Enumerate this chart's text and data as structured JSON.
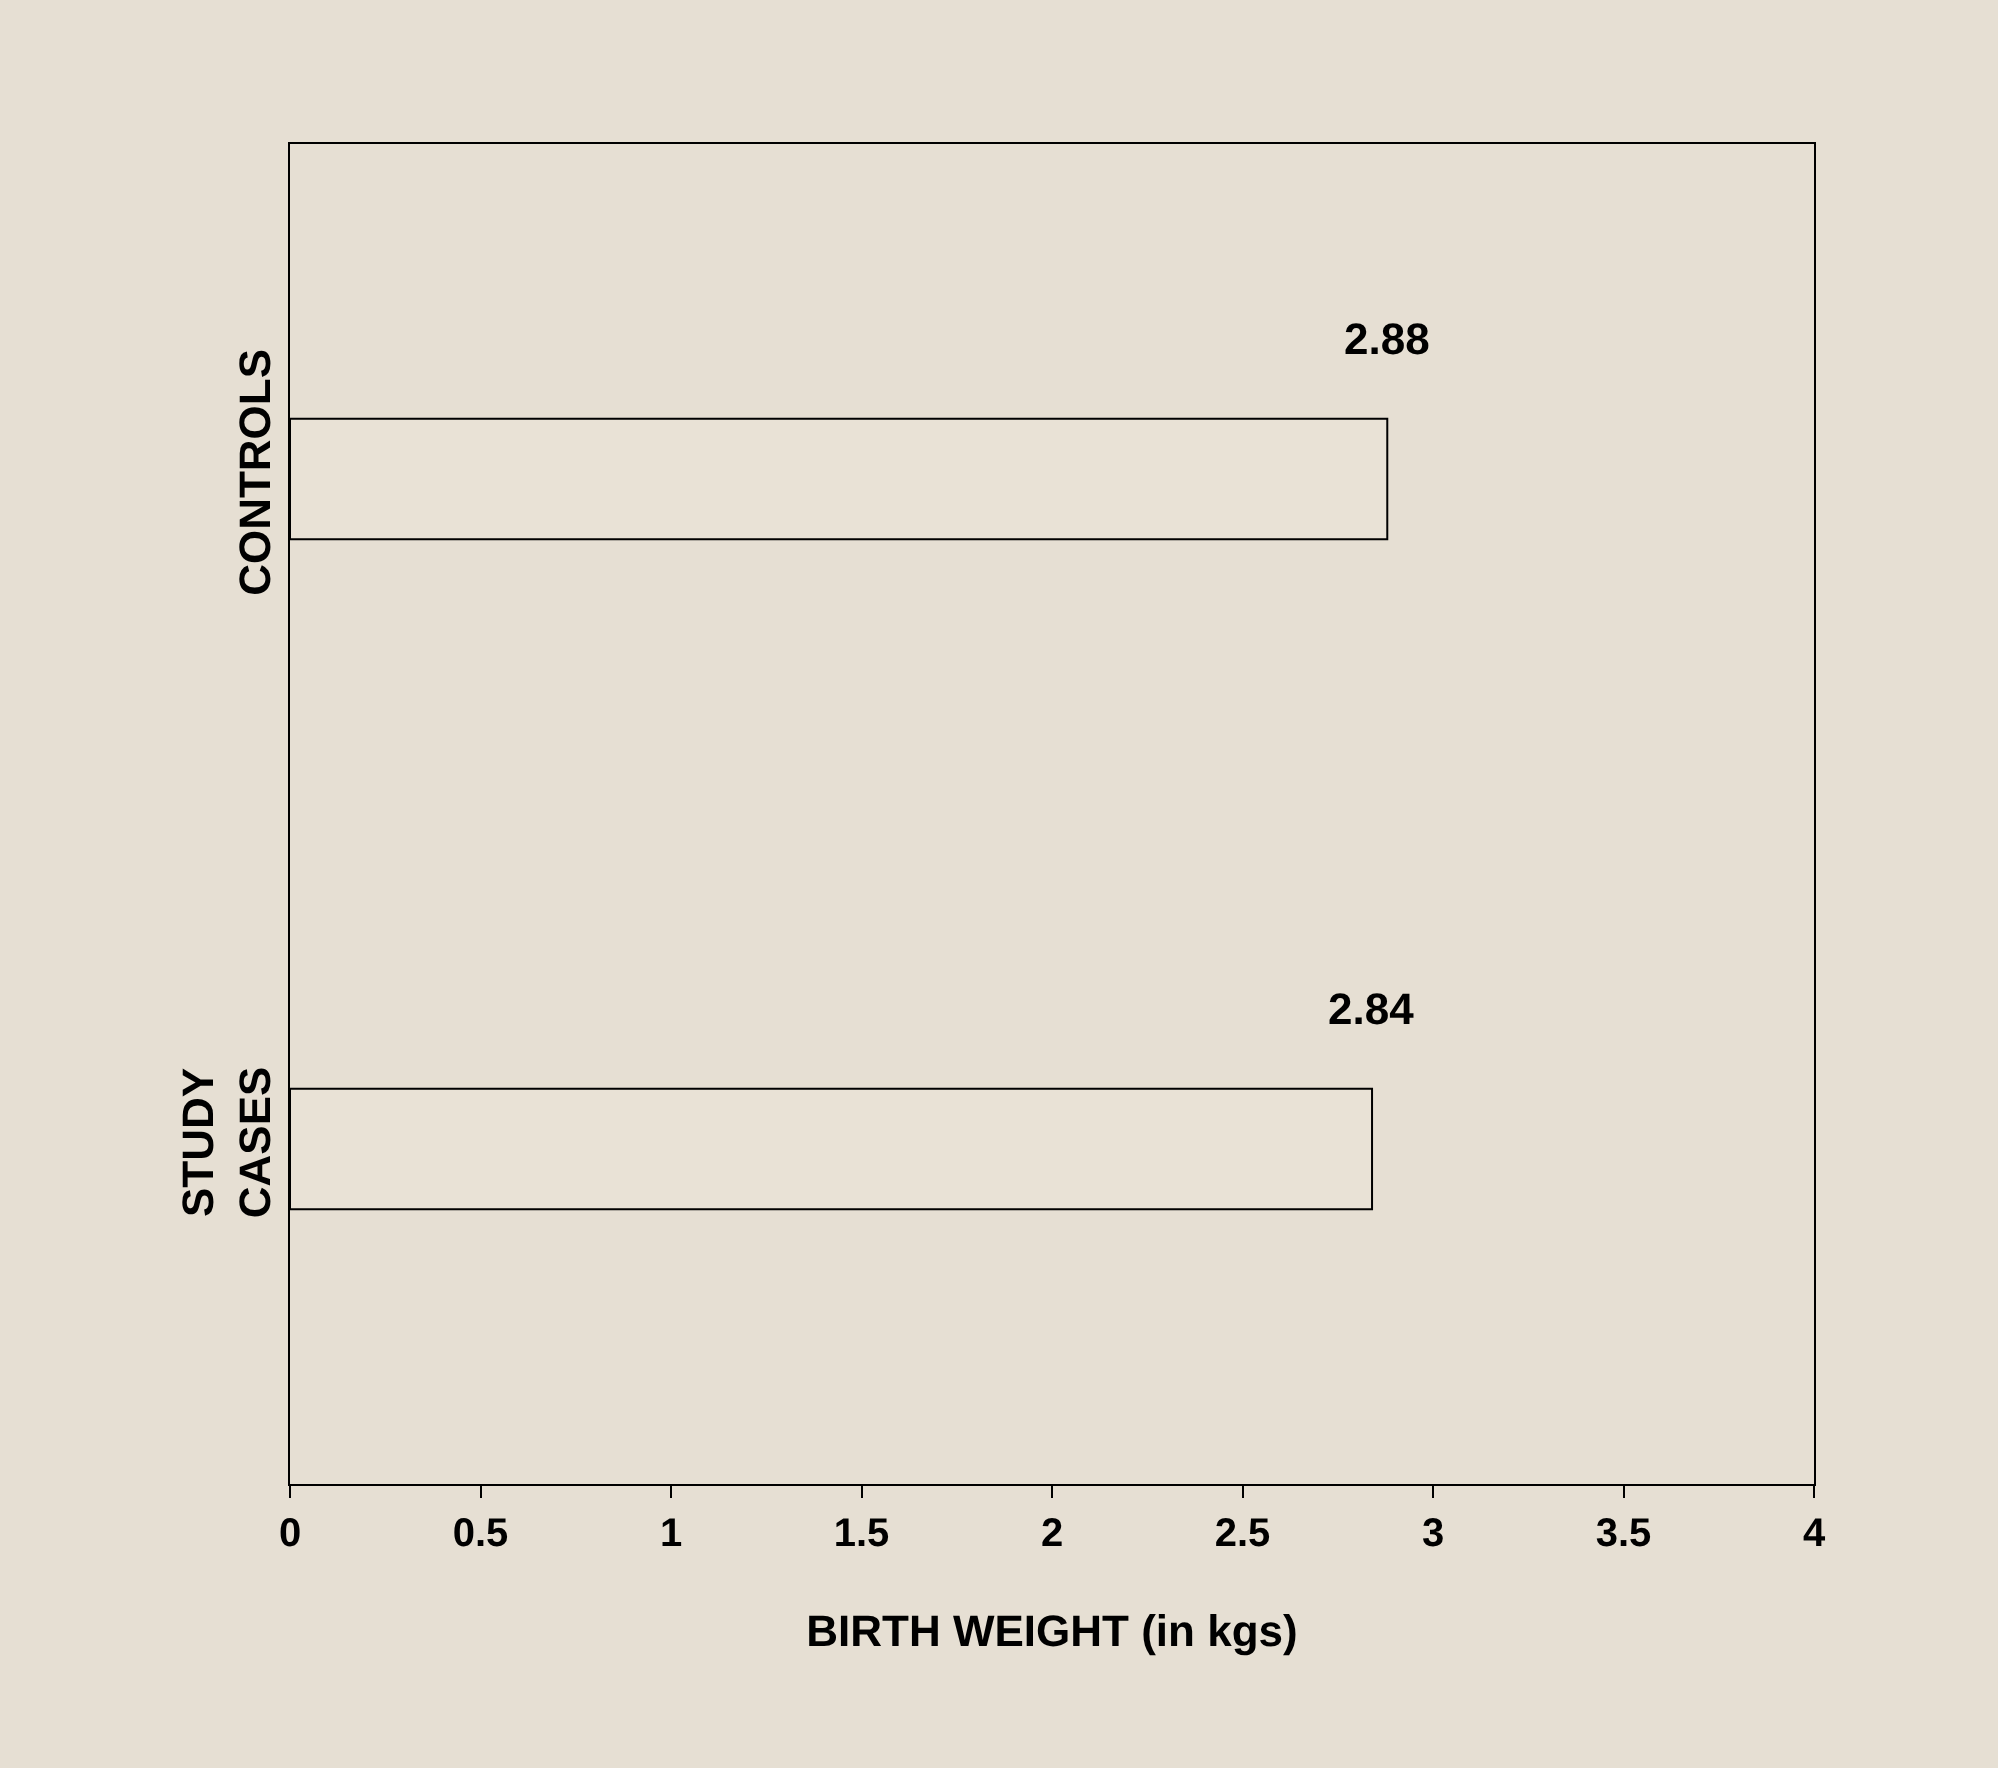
{
  "chart_data": {
    "type": "bar",
    "orientation": "horizontal",
    "xlabel": "BIRTH WEIGHT (in kgs)",
    "categories": [
      "CONTROLS",
      "STUDY CASES"
    ],
    "values": [
      2.88,
      2.84
    ],
    "color": "#e9e2d6",
    "data_labels": true,
    "xlim": [
      0,
      4
    ],
    "xticks": [
      0,
      0.5,
      1,
      1.5,
      2,
      2.5,
      3,
      3.5,
      4
    ],
    "grid": false
  }
}
